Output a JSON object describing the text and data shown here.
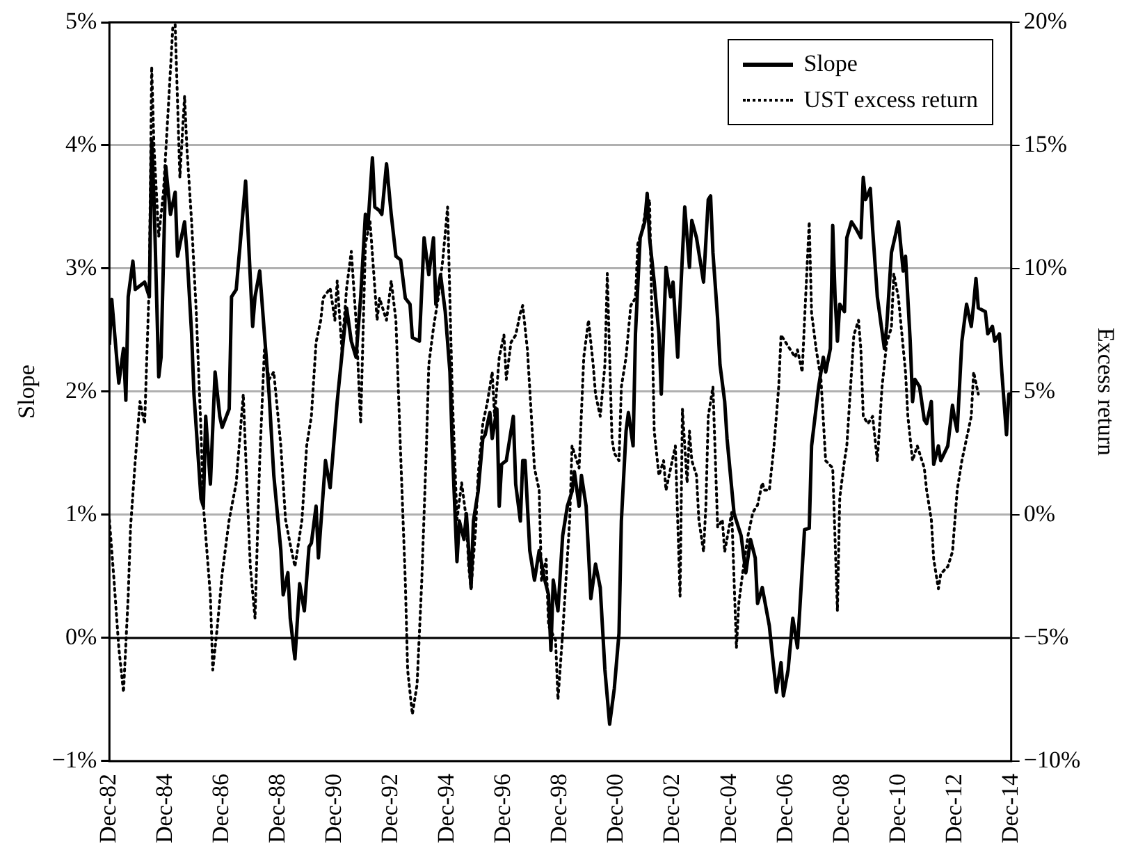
{
  "chart_data": {
    "type": "line",
    "ylabel": "Slope",
    "y2label": "Excess return",
    "xlim": [
      "1982-12",
      "2014-12"
    ],
    "xticks": [
      {
        "value": "1982-12",
        "label": "Dec-82"
      },
      {
        "value": "1984-12",
        "label": "Dec-84"
      },
      {
        "value": "1986-12",
        "label": "Dec-86"
      },
      {
        "value": "1988-12",
        "label": "Dec-88"
      },
      {
        "value": "1990-12",
        "label": "Dec-90"
      },
      {
        "value": "1992-12",
        "label": "Dec-92"
      },
      {
        "value": "1994-12",
        "label": "Dec-94"
      },
      {
        "value": "1996-12",
        "label": "Dec-96"
      },
      {
        "value": "1998-12",
        "label": "Dec-98"
      },
      {
        "value": "2000-12",
        "label": "Dec-00"
      },
      {
        "value": "2002-12",
        "label": "Dec-02"
      },
      {
        "value": "2004-12",
        "label": "Dec-04"
      },
      {
        "value": "2006-12",
        "label": "Dec-06"
      },
      {
        "value": "2008-12",
        "label": "Dec-08"
      },
      {
        "value": "2010-12",
        "label": "Dec-10"
      },
      {
        "value": "2012-12",
        "label": "Dec-12"
      },
      {
        "value": "2014-12",
        "label": "Dec-14"
      }
    ],
    "ylim": [
      -1,
      5
    ],
    "yticks": [
      {
        "value": -1,
        "label": "−1%"
      },
      {
        "value": 0,
        "label": "0%"
      },
      {
        "value": 1,
        "label": "1%"
      },
      {
        "value": 2,
        "label": "2%"
      },
      {
        "value": 3,
        "label": "3%"
      },
      {
        "value": 4,
        "label": "4%"
      },
      {
        "value": 5,
        "label": "5%"
      }
    ],
    "y2lim": [
      -10,
      20
    ],
    "y2ticks": [
      {
        "value": -10,
        "label": "−10%"
      },
      {
        "value": -5,
        "label": "−5%"
      },
      {
        "value": 0,
        "label": "0%"
      },
      {
        "value": 5,
        "label": "5%"
      },
      {
        "value": 10,
        "label": "10%"
      },
      {
        "value": 15,
        "label": "15%"
      },
      {
        "value": 20,
        "label": "20%"
      }
    ],
    "grid": "y",
    "legend": "top right",
    "marker": "none",
    "ref_lines": [
      {
        "axis": "y",
        "value": 0,
        "color": "#000000"
      }
    ],
    "series": [
      {
        "name": "Slope",
        "color": "#000000",
        "line_style": "solid",
        "x": [
          "1982-12",
          "1983-01",
          "1983-04",
          "1983-06",
          "1983-07",
          "1983-08",
          "1983-10",
          "1983-11",
          "1984-03",
          "1984-05",
          "1984-06",
          "1984-07",
          "1984-09",
          "1984-10",
          "1984-12",
          "1985-02",
          "1985-04",
          "1985-05",
          "1985-08",
          "1985-09",
          "1985-11",
          "1985-12",
          "1986-03",
          "1986-04",
          "1986-05",
          "1986-07",
          "1986-09",
          "1986-11",
          "1986-12",
          "1987-03",
          "1987-04",
          "1987-06",
          "1987-10",
          "1988-01",
          "1988-02",
          "1988-04",
          "1988-06",
          "1988-08",
          "1988-10",
          "1989-01",
          "1989-02",
          "1989-04",
          "1989-05",
          "1989-07",
          "1989-09",
          "1989-11",
          "1990-01",
          "1990-02",
          "1990-04",
          "1990-05",
          "1990-08",
          "1990-10",
          "1991-01",
          "1991-05",
          "1991-07",
          "1991-09",
          "1991-11",
          "1992-01",
          "1992-02",
          "1992-04",
          "1992-05",
          "1992-07",
          "1992-08",
          "1992-10",
          "1992-12",
          "1993-02",
          "1993-04",
          "1993-06",
          "1993-08",
          "1993-09",
          "1993-12",
          "1994-02",
          "1994-04",
          "1994-06",
          "1994-07",
          "1994-09",
          "1994-11",
          "1995-01",
          "1995-02",
          "1995-04",
          "1995-05",
          "1995-07",
          "1995-08",
          "1995-10",
          "1995-11",
          "1996-01",
          "1996-03",
          "1996-04",
          "1996-06",
          "1996-07",
          "1996-09",
          "1996-10",
          "1996-11",
          "1997-01",
          "1997-04",
          "1997-05",
          "1997-07",
          "1997-08",
          "1997-09",
          "1997-11",
          "1998-01",
          "1998-03",
          "1998-05",
          "1998-07",
          "1998-08",
          "1998-09",
          "1998-11",
          "1999-01",
          "1999-03",
          "1999-05",
          "1999-06",
          "1999-08",
          "1999-09",
          "1999-11",
          "2000-01",
          "2000-03",
          "2000-05",
          "2000-07",
          "2000-09",
          "2000-11",
          "2001-01",
          "2001-02",
          "2001-04",
          "2001-05",
          "2001-07",
          "2001-08",
          "2001-10",
          "2001-12",
          "2002-01",
          "2002-02",
          "2002-04",
          "2002-06",
          "2002-07",
          "2002-09",
          "2002-11",
          "2002-12",
          "2003-02",
          "2003-03",
          "2003-05",
          "2003-07",
          "2003-08",
          "2003-10",
          "2004-01",
          "2004-03",
          "2004-04",
          "2004-05",
          "2004-07",
          "2004-08",
          "2004-10",
          "2004-11",
          "2005-02",
          "2005-05",
          "2005-07",
          "2005-09",
          "2005-11",
          "2005-12",
          "2006-02",
          "2006-05",
          "2006-07",
          "2006-08",
          "2006-10",
          "2006-11",
          "2007-01",
          "2007-03",
          "2007-05",
          "2007-07",
          "2007-08",
          "2007-10",
          "2007-11",
          "2008-02",
          "2008-04",
          "2008-05",
          "2008-07",
          "2008-08",
          "2008-09",
          "2008-10",
          "2008-11",
          "2009-01",
          "2009-02",
          "2009-04",
          "2009-06",
          "2009-08",
          "2009-09",
          "2009-10",
          "2009-12",
          "2010-01",
          "2010-03",
          "2010-06",
          "2010-07",
          "2010-09",
          "2010-12",
          "2011-02",
          "2011-03",
          "2011-05",
          "2011-06",
          "2011-07",
          "2011-09",
          "2011-11",
          "2011-12",
          "2012-02",
          "2012-03",
          "2012-05",
          "2012-06",
          "2012-09",
          "2012-11",
          "2012-12",
          "2013-01",
          "2013-03",
          "2013-05",
          "2013-07",
          "2013-08",
          "2013-09",
          "2013-10",
          "2014-01",
          "2014-02",
          "2014-04",
          "2014-05",
          "2014-07",
          "2014-08",
          "2014-10",
          "2014-11",
          "2014-12"
        ],
        "values": [
          2.38,
          2.75,
          2.07,
          2.35,
          1.93,
          2.77,
          3.06,
          2.83,
          2.89,
          2.77,
          4.04,
          3.56,
          2.12,
          2.28,
          3.83,
          3.44,
          3.62,
          3.1,
          3.38,
          3.13,
          2.47,
          1.98,
          1.13,
          1.07,
          1.8,
          1.25,
          2.16,
          1.8,
          1.71,
          1.86,
          2.77,
          2.83,
          3.71,
          2.53,
          2.77,
          2.98,
          2.47,
          1.98,
          1.32,
          0.71,
          0.35,
          0.53,
          0.16,
          -0.17,
          0.44,
          0.22,
          0.74,
          0.77,
          1.07,
          0.65,
          1.44,
          1.22,
          1.92,
          2.68,
          2.41,
          2.28,
          2.77,
          3.44,
          3.32,
          3.9,
          3.5,
          3.47,
          3.44,
          3.85,
          3.44,
          3.1,
          3.07,
          2.76,
          2.71,
          2.44,
          2.41,
          3.25,
          2.95,
          3.25,
          2.71,
          2.95,
          2.65,
          2.16,
          1.56,
          0.62,
          0.95,
          0.8,
          1.01,
          0.41,
          0.95,
          1.19,
          1.62,
          1.65,
          1.83,
          1.62,
          1.86,
          1.07,
          1.41,
          1.44,
          1.8,
          1.25,
          0.95,
          1.44,
          1.44,
          0.71,
          0.47,
          0.71,
          0.5,
          0.35,
          -0.1,
          0.47,
          0.22,
          0.83,
          1.07,
          1.19,
          1.35,
          1.07,
          1.32,
          1.07,
          0.32,
          0.6,
          0.41,
          -0.26,
          -0.7,
          -0.41,
          0.04,
          0.95,
          1.68,
          1.83,
          1.56,
          2.47,
          3.25,
          3.38,
          3.61,
          3.25,
          2.89,
          2.47,
          1.98,
          3.01,
          2.77,
          2.89,
          2.28,
          2.71,
          3.5,
          3.01,
          3.39,
          3.25,
          2.89,
          3.56,
          3.59,
          3.13,
          2.59,
          2.22,
          1.92,
          1.62,
          1.01,
          0.83,
          0.53,
          0.8,
          0.65,
          0.28,
          0.41,
          0.1,
          -0.26,
          -0.44,
          -0.2,
          -0.47,
          -0.26,
          0.16,
          -0.08,
          0.56,
          0.88,
          0.89,
          1.56,
          2.04,
          2.28,
          2.16,
          2.35,
          3.35,
          2.77,
          2.41,
          2.71,
          2.65,
          3.25,
          3.38,
          3.32,
          3.25,
          3.74,
          3.56,
          3.65,
          3.32,
          2.77,
          2.35,
          2.53,
          3.13,
          3.38,
          2.98,
          3.1,
          2.41,
          1.92,
          2.1,
          2.04,
          1.77,
          1.74,
          1.92,
          1.41,
          1.56,
          1.44,
          1.56,
          1.89,
          1.77,
          1.68,
          2.41,
          2.71,
          2.53,
          2.71,
          2.92,
          2.68,
          2.65,
          2.47,
          2.53,
          2.41,
          2.47,
          2.16,
          1.65,
          1.98,
          1.98
        ]
      },
      {
        "name": "UST excess return",
        "color": "#000000",
        "line_style": "dotted",
        "axis": "y2",
        "x": [
          "1982-12",
          "1983-02",
          "1983-04",
          "1983-06",
          "1983-08",
          "1983-09",
          "1983-11",
          "1984-01",
          "1984-03",
          "1984-05",
          "1984-06",
          "1984-07",
          "1984-09",
          "1984-11",
          "1985-01",
          "1985-03",
          "1985-04",
          "1985-06",
          "1985-08",
          "1985-09",
          "1985-11",
          "1986-01",
          "1986-03",
          "1986-04",
          "1986-07",
          "1986-08",
          "1986-10",
          "1986-12",
          "1987-03",
          "1987-06",
          "1987-09",
          "1987-10",
          "1987-12",
          "1988-02",
          "1988-04",
          "1988-06",
          "1988-08",
          "1988-10",
          "1989-01",
          "1989-03",
          "1989-05",
          "1989-07",
          "1989-10",
          "1989-12",
          "1990-02",
          "1990-04",
          "1990-06",
          "1990-07",
          "1990-10",
          "1990-12",
          "1991-01",
          "1991-03",
          "1991-05",
          "1991-07",
          "1991-09",
          "1991-11",
          "1992-01",
          "1992-03",
          "1992-06",
          "1992-07",
          "1992-10",
          "1992-12",
          "1993-02",
          "1993-04",
          "1993-06",
          "1993-07",
          "1993-09",
          "1993-11",
          "1994-01",
          "1994-03",
          "1994-04",
          "1994-06",
          "1994-08",
          "1994-10",
          "1994-12",
          "1995-02",
          "1995-04",
          "1995-06",
          "1995-08",
          "1995-09",
          "1995-10",
          "1995-12",
          "1996-01",
          "1996-03",
          "1996-05",
          "1996-07",
          "1996-08",
          "1996-10",
          "1996-12",
          "1997-01",
          "1997-03",
          "1997-05",
          "1997-07",
          "1997-08",
          "1997-10",
          "1998-01",
          "1998-03",
          "1998-04",
          "1998-06",
          "1998-07",
          "1998-10",
          "1998-11",
          "1999-01",
          "1999-04",
          "1999-05",
          "1999-08",
          "1999-10",
          "1999-12",
          "2000-02",
          "2000-03",
          "2000-05",
          "2000-07",
          "2000-08",
          "2000-10",
          "2000-11",
          "2001-01",
          "2001-02",
          "2001-04",
          "2001-06",
          "2001-08",
          "2001-09",
          "2001-11",
          "2001-12",
          "2002-02",
          "2002-04",
          "2002-06",
          "2002-08",
          "2002-09",
          "2002-11",
          "2003-01",
          "2003-03",
          "2003-04",
          "2003-06",
          "2003-07",
          "2003-08",
          "2003-10",
          "2003-11",
          "2004-01",
          "2004-02",
          "2004-03",
          "2004-05",
          "2004-07",
          "2004-09",
          "2004-10",
          "2005-01",
          "2005-03",
          "2005-04",
          "2005-06",
          "2005-08",
          "2005-10",
          "2005-12",
          "2006-02",
          "2006-03",
          "2006-05",
          "2006-07",
          "2006-09",
          "2006-10",
          "2006-12",
          "2007-02",
          "2007-04",
          "2007-05",
          "2007-07",
          "2007-08",
          "2007-10",
          "2007-11",
          "2008-01",
          "2008-03",
          "2008-05",
          "2008-08",
          "2008-10",
          "2008-11",
          "2009-01",
          "2009-02",
          "2009-05",
          "2009-07",
          "2009-08",
          "2009-09",
          "2009-11",
          "2010-01",
          "2010-03",
          "2010-05",
          "2010-07",
          "2010-09",
          "2010-10",
          "2010-12",
          "2011-03",
          "2011-04",
          "2011-06",
          "2011-08",
          "2011-11",
          "2011-12",
          "2012-02",
          "2012-03",
          "2012-05",
          "2012-06",
          "2012-09",
          "2012-11",
          "2013-01",
          "2013-03",
          "2013-05",
          "2013-07",
          "2013-08",
          "2013-10"
        ],
        "values": [
          -0.2,
          -2.7,
          -5.4,
          -7.2,
          -3.3,
          -0.5,
          2.2,
          4.6,
          3.7,
          9.5,
          18.2,
          14.9,
          11.3,
          13.1,
          16.4,
          19.8,
          19.9,
          13.7,
          17.0,
          14.9,
          11.9,
          8.2,
          3.4,
          0.4,
          -3.3,
          -6.3,
          -4.5,
          -2.4,
          -0.2,
          1.3,
          4.9,
          2.5,
          -2.1,
          -4.2,
          2.2,
          6.7,
          5.5,
          5.8,
          2.8,
          -0.2,
          -1.2,
          -2.1,
          -0.2,
          2.8,
          4.0,
          7.0,
          7.9,
          8.8,
          9.2,
          7.9,
          9.5,
          6.7,
          9.2,
          10.7,
          7.9,
          3.7,
          11.0,
          11.9,
          7.9,
          8.8,
          7.9,
          9.5,
          7.9,
          2.5,
          -2.7,
          -6.3,
          -8.1,
          -6.9,
          -2.7,
          2.8,
          6.1,
          7.6,
          8.8,
          10.4,
          12.5,
          4.9,
          -0.2,
          1.3,
          -0.2,
          -2.1,
          -3.0,
          -0.5,
          1.6,
          3.7,
          4.6,
          5.8,
          4.0,
          6.4,
          7.3,
          5.5,
          7.0,
          7.3,
          8.2,
          8.5,
          6.7,
          1.9,
          1.0,
          -2.7,
          -1.8,
          -4.5,
          -5.1,
          -7.5,
          -4.8,
          -0.2,
          2.8,
          1.9,
          6.4,
          7.9,
          6.1,
          4.9,
          4.0,
          6.1,
          9.8,
          3.1,
          2.5,
          2.2,
          5.2,
          6.4,
          8.5,
          8.8,
          11.0,
          11.6,
          12.2,
          12.8,
          3.4,
          1.6,
          2.2,
          1.0,
          1.9,
          2.8,
          -3.3,
          4.3,
          1.3,
          3.4,
          2.2,
          1.6,
          -0.2,
          -1.5,
          0.4,
          4.0,
          5.2,
          -0.5,
          -0.2,
          -1.5,
          0.1,
          -5.4,
          -3.6,
          -2.1,
          -0.8,
          0.1,
          0.4,
          1.3,
          1.0,
          1.0,
          2.8,
          5.2,
          7.3,
          7.0,
          6.7,
          6.4,
          6.7,
          5.8,
          7.9,
          11.9,
          8.2,
          6.7,
          5.5,
          2.2,
          1.9,
          -3.9,
          0.7,
          2.2,
          2.8,
          7.3,
          7.9,
          6.7,
          4.0,
          3.7,
          4.0,
          2.2,
          5.2,
          7.0,
          7.6,
          9.8,
          8.8,
          5.8,
          4.0,
          2.2,
          2.8,
          1.9,
          1.0,
          -0.2,
          -1.8,
          -3.0,
          -2.4,
          -2.1,
          -1.5,
          1.0,
          2.2,
          3.1,
          4.0,
          5.8,
          4.9
        ]
      }
    ]
  }
}
